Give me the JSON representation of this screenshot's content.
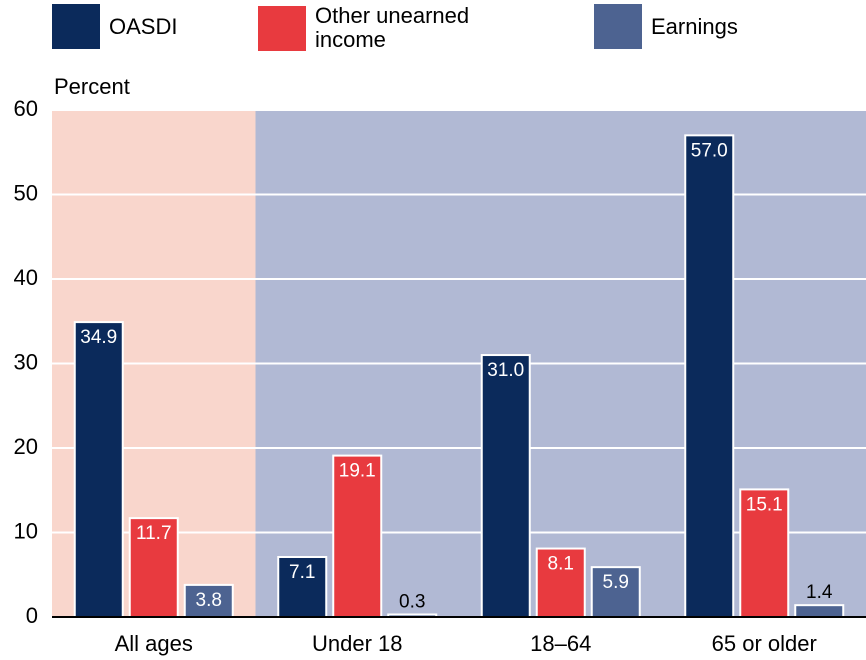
{
  "chart_data": {
    "type": "bar",
    "y_label": "Percent",
    "categories": [
      "All ages",
      "Under 18",
      "18–64",
      "65 or older"
    ],
    "series": [
      {
        "name": "OASDI",
        "color": "#0b2a5b",
        "values": [
          34.9,
          7.1,
          31.0,
          57.0
        ],
        "value_labels": [
          "34.9",
          "7.1",
          "31.0",
          "57.0"
        ]
      },
      {
        "name": "Other unearned income",
        "color": "#e83a3f",
        "values": [
          11.7,
          19.1,
          8.1,
          15.1
        ],
        "value_labels": [
          "11.7",
          "19.1",
          "8.1",
          "15.1"
        ]
      },
      {
        "name": "Earnings",
        "color": "#4d6391",
        "values": [
          3.8,
          0.3,
          5.9,
          1.4
        ],
        "value_labels": [
          "3.8",
          "0.3",
          "5.9",
          "1.4"
        ]
      }
    ],
    "ylim": [
      0,
      60
    ],
    "yticks": [
      0,
      10,
      20,
      30,
      40,
      50,
      60
    ],
    "grid": true
  }
}
